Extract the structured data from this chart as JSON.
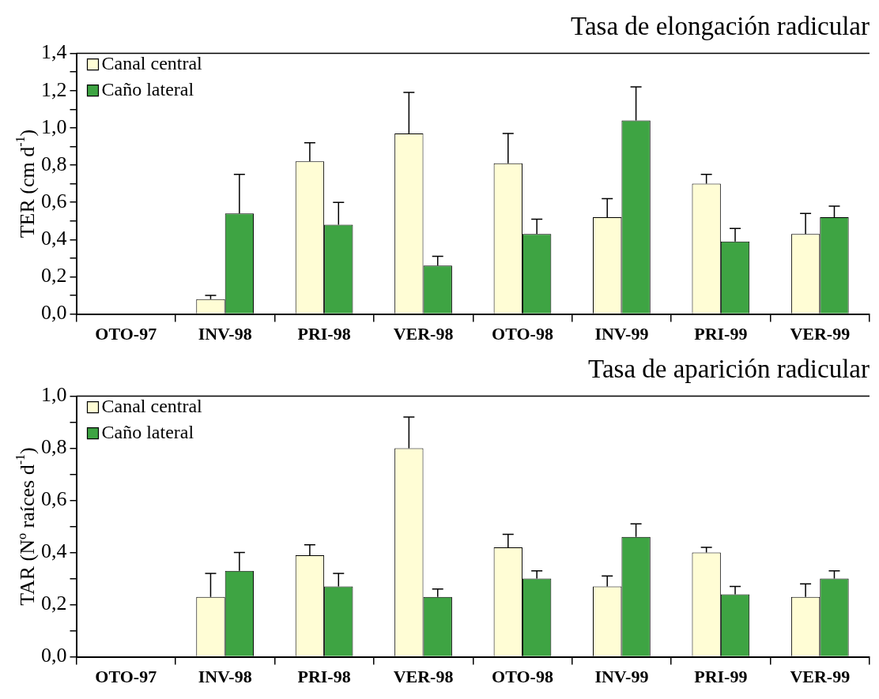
{
  "chart_data": [
    {
      "type": "bar",
      "title": "Tasa de elongación radicular",
      "ylabel": "TER (cm d$^{-1}$)",
      "categories": [
        "OTO-97",
        "INV-98",
        "PRI-98",
        "VER-98",
        "OTO-98",
        "INV-99",
        "PRI-99",
        "VER-99"
      ],
      "series": [
        {
          "name": "Canal central",
          "color": "#fffdd5",
          "values": [
            null,
            0.08,
            0.82,
            0.97,
            0.81,
            0.52,
            0.7,
            0.43
          ],
          "errors": [
            null,
            0.02,
            0.1,
            0.22,
            0.16,
            0.1,
            0.05,
            0.11
          ]
        },
        {
          "name": "Caño lateral",
          "color": "#3ea443",
          "values": [
            null,
            0.54,
            0.48,
            0.26,
            0.43,
            1.04,
            0.39,
            0.52
          ],
          "errors": [
            null,
            0.21,
            0.12,
            0.05,
            0.08,
            0.18,
            0.07,
            0.06
          ]
        }
      ],
      "ylim": [
        0,
        1.4
      ],
      "yticks": [
        {
          "value": 0,
          "label": "0,0"
        },
        {
          "value": 0.1,
          "label": null
        },
        {
          "value": 0.2,
          "label": "0,2"
        },
        {
          "value": 0.3,
          "label": null
        },
        {
          "value": 0.4,
          "label": "0,4"
        },
        {
          "value": 0.5,
          "label": null
        },
        {
          "value": 0.6,
          "label": "0,6"
        },
        {
          "value": 0.7,
          "label": null
        },
        {
          "value": 0.8,
          "label": "0,8"
        },
        {
          "value": 0.9,
          "label": null
        },
        {
          "value": 1.0,
          "label": "1,0"
        },
        {
          "value": 1.1,
          "label": null
        },
        {
          "value": 1.2,
          "label": "1,2"
        },
        {
          "value": 1.3,
          "label": null
        },
        {
          "value": 1.4,
          "label": "1,4"
        }
      ],
      "grid": false,
      "legend": "top left"
    },
    {
      "type": "bar",
      "title": "Tasa de aparición radicular",
      "ylabel": "TAR (Nº raíces d$^{-1}$)",
      "categories": [
        "OTO-97",
        "INV-98",
        "PRI-98",
        "VER-98",
        "OTO-98",
        "INV-99",
        "PRI-99",
        "VER-99"
      ],
      "series": [
        {
          "name": "Canal central",
          "color": "#fffdd5",
          "values": [
            null,
            0.23,
            0.39,
            0.8,
            0.42,
            0.27,
            0.4,
            0.23
          ],
          "errors": [
            null,
            0.09,
            0.04,
            0.12,
            0.05,
            0.04,
            0.02,
            0.05
          ]
        },
        {
          "name": "Caño lateral",
          "color": "#3ea443",
          "values": [
            null,
            0.33,
            0.27,
            0.23,
            0.3,
            0.46,
            0.24,
            0.3
          ],
          "errors": [
            null,
            0.07,
            0.05,
            0.03,
            0.03,
            0.05,
            0.03,
            0.03
          ]
        }
      ],
      "ylim": [
        0,
        1.0
      ],
      "yticks": [
        {
          "value": 0,
          "label": "0,0"
        },
        {
          "value": 0.1,
          "label": null
        },
        {
          "value": 0.2,
          "label": "0,2"
        },
        {
          "value": 0.3,
          "label": null
        },
        {
          "value": 0.4,
          "label": "0,4"
        },
        {
          "value": 0.5,
          "label": null
        },
        {
          "value": 0.6,
          "label": "0,6"
        },
        {
          "value": 0.7,
          "label": null
        },
        {
          "value": 0.8,
          "label": "0,8"
        },
        {
          "value": 0.9,
          "label": null
        },
        {
          "value": 1.0,
          "label": "1,0"
        }
      ],
      "grid": false,
      "legend": "top left"
    }
  ]
}
